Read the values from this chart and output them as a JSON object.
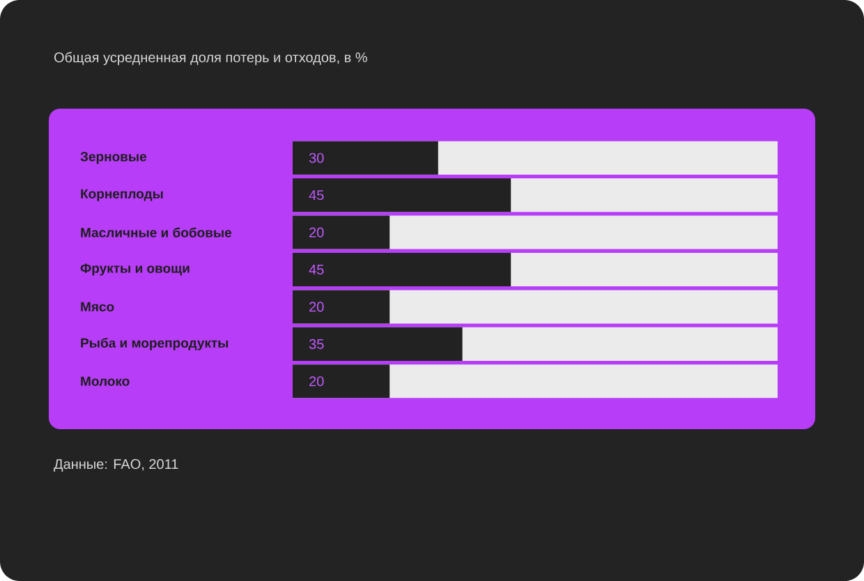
{
  "chart_data": {
    "type": "bar",
    "orientation": "horizontal",
    "title": "Общая усредненная доля потерь и отходов, в %",
    "categories": [
      "Зерновые",
      "Корнеплоды",
      "Масличные и бобовые",
      "Фрукты и овощи",
      "Мясо",
      "Рыба и морепродукты",
      "Молоко"
    ],
    "values": [
      30,
      45,
      20,
      45,
      20,
      35,
      20
    ],
    "color": "#222222",
    "xlim": [
      0,
      100
    ],
    "data_labels": true,
    "annotations": [
      "Данные: FAO, 2011"
    ]
  }
}
